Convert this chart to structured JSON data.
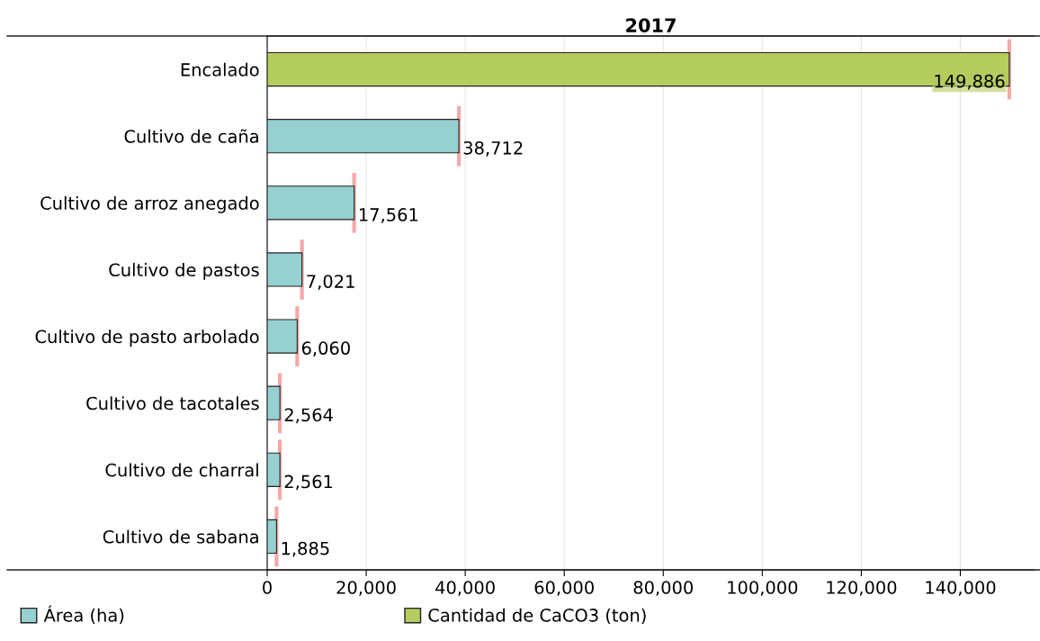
{
  "chart_data": {
    "type": "bar",
    "orientation": "horizontal",
    "title": "2017",
    "categories": [
      "Encalado",
      "Cultivo de caña",
      "Cultivo de arroz anegado",
      "Cultivo de pastos",
      "Cultivo de pasto arbolado",
      "Cultivo de tacotales",
      "Cultivo de charral",
      "Cultivo de sabana"
    ],
    "series": [
      {
        "name": "Área (ha)",
        "color": "#96d0d0",
        "values": [
          null,
          38712,
          17561,
          7021,
          6060,
          2564,
          2561,
          1885
        ],
        "value_labels": [
          null,
          "38,712",
          "17,561",
          "7,021",
          "6,060",
          "2,564",
          "2,561",
          "1,885"
        ]
      },
      {
        "name": "Cantidad de CaCO3 (ton)",
        "color": "#b5cc5e",
        "values": [
          149886,
          null,
          null,
          null,
          null,
          null,
          null,
          null
        ],
        "value_labels": [
          "149,886",
          null,
          null,
          null,
          null,
          null,
          null,
          null
        ]
      }
    ],
    "xlim": [
      0,
      155000
    ],
    "xticks": [
      {
        "value": 0,
        "label": "0"
      },
      {
        "value": 20000,
        "label": "20,000"
      },
      {
        "value": 40000,
        "label": "40,000"
      },
      {
        "value": 60000,
        "label": "60,000"
      },
      {
        "value": 80000,
        "label": "80,000"
      },
      {
        "value": 100000,
        "label": "100,000"
      },
      {
        "value": 120000,
        "label": "120,000"
      },
      {
        "value": 140000,
        "label": "140,000"
      }
    ],
    "grid": "x",
    "legend": "bottom"
  }
}
